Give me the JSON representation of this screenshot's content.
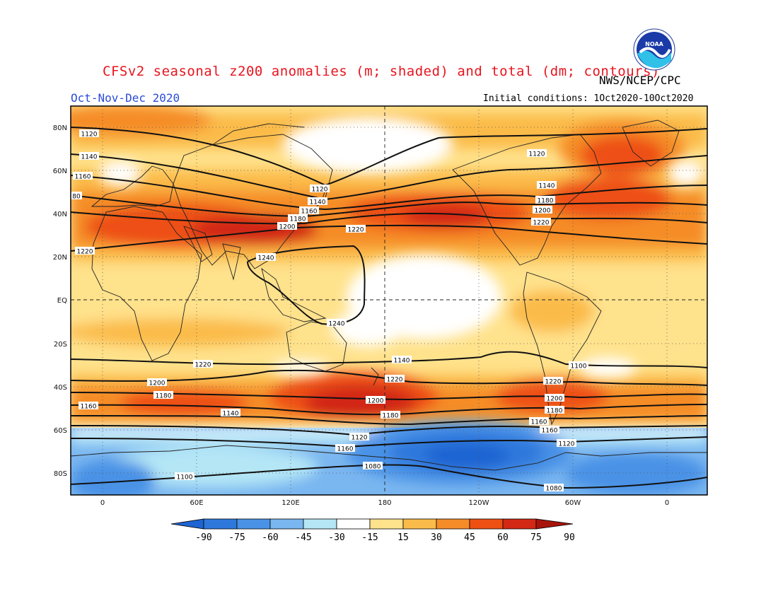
{
  "title": "CFSv2 seasonal z200 anomalies (m; shaded) and total (dm; contours)",
  "period": "Oct-Nov-Dec 2020",
  "agency": "NWS/NCEP/CPC",
  "initial_conditions": "Initial conditions: 1Oct2020-10Oct2020",
  "logo_text": "NOAA",
  "lat_labels": [
    "80N",
    "60N",
    "40N",
    "20N",
    "EQ",
    "20S",
    "40S",
    "60S",
    "80S"
  ],
  "lon_labels": [
    "0",
    "60E",
    "120E",
    "180",
    "120W",
    "60W",
    "0"
  ],
  "colorbar": {
    "ticks": [
      "-90",
      "-75",
      "-60",
      "-45",
      "-30",
      "-15",
      "15",
      "30",
      "45",
      "60",
      "75",
      "90"
    ],
    "colors": [
      "#1e64d2",
      "#2e78dc",
      "#4a92e6",
      "#7ab6f0",
      "#b4e6f6",
      "#ffffff",
      "#ffe28c",
      "#fbbb4a",
      "#f58c28",
      "#ee5014",
      "#d22814",
      "#a8140a"
    ]
  },
  "contour_labels": [
    {
      "text": "1120"
    },
    {
      "text": "1140"
    },
    {
      "text": "1160"
    },
    {
      "text": "80"
    },
    {
      "text": "1220"
    },
    {
      "text": "1200"
    },
    {
      "text": "1180"
    },
    {
      "text": "1160"
    },
    {
      "text": "1140"
    },
    {
      "text": "1120"
    },
    {
      "text": "1240"
    },
    {
      "text": "1220"
    },
    {
      "text": "1240"
    },
    {
      "text": "1120"
    },
    {
      "text": "1140"
    },
    {
      "text": "1160"
    },
    {
      "text": "1180"
    },
    {
      "text": "1200"
    },
    {
      "text": "1220"
    },
    {
      "text": "1220"
    },
    {
      "text": "1200"
    },
    {
      "text": "1180"
    },
    {
      "text": "1160"
    },
    {
      "text": "1140"
    },
    {
      "text": "1220"
    },
    {
      "text": "1200"
    },
    {
      "text": "1180"
    },
    {
      "text": "1160"
    },
    {
      "text": "1120"
    },
    {
      "text": "1100"
    },
    {
      "text": "1220"
    },
    {
      "text": "1200"
    },
    {
      "text": "1180"
    },
    {
      "text": "1160"
    },
    {
      "text": "1140"
    },
    {
      "text": "1120"
    },
    {
      "text": "1100"
    },
    {
      "text": "1080"
    },
    {
      "text": "1080"
    },
    {
      "text": "1080"
    }
  ]
}
